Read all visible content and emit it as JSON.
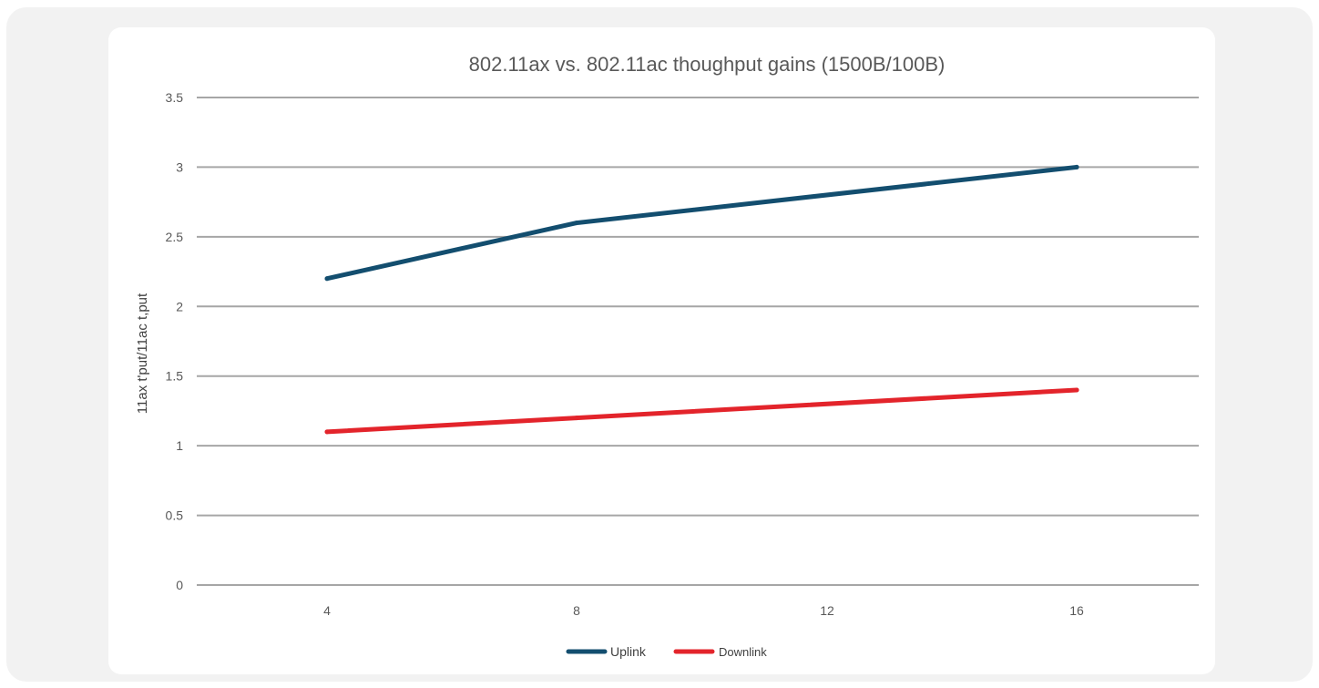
{
  "chart_data": {
    "type": "line",
    "title": "802.11ax vs. 802.11ac thoughput gains (1500B/100B)",
    "xlabel": "",
    "ylabel": "11ax t'put/11ac t,put",
    "x": [
      4,
      8,
      12,
      16
    ],
    "x_tick_labels": [
      "4",
      "8",
      "12",
      "16"
    ],
    "y_tick_labels": [
      "0",
      "0.5",
      "1",
      "1.5",
      "2",
      "2.5",
      "3",
      "3.5"
    ],
    "ylim": [
      0,
      3.5
    ],
    "grid": true,
    "legend_position": "bottom",
    "series": [
      {
        "name": "Uplink",
        "color": "#134e6f",
        "x": [
          4,
          8,
          16
        ],
        "values": [
          2.2,
          2.6,
          3.0
        ]
      },
      {
        "name": "Downlink",
        "color": "#e3242b",
        "x": [
          4,
          8,
          16
        ],
        "values": [
          1.1,
          1.2,
          1.4
        ]
      }
    ]
  }
}
